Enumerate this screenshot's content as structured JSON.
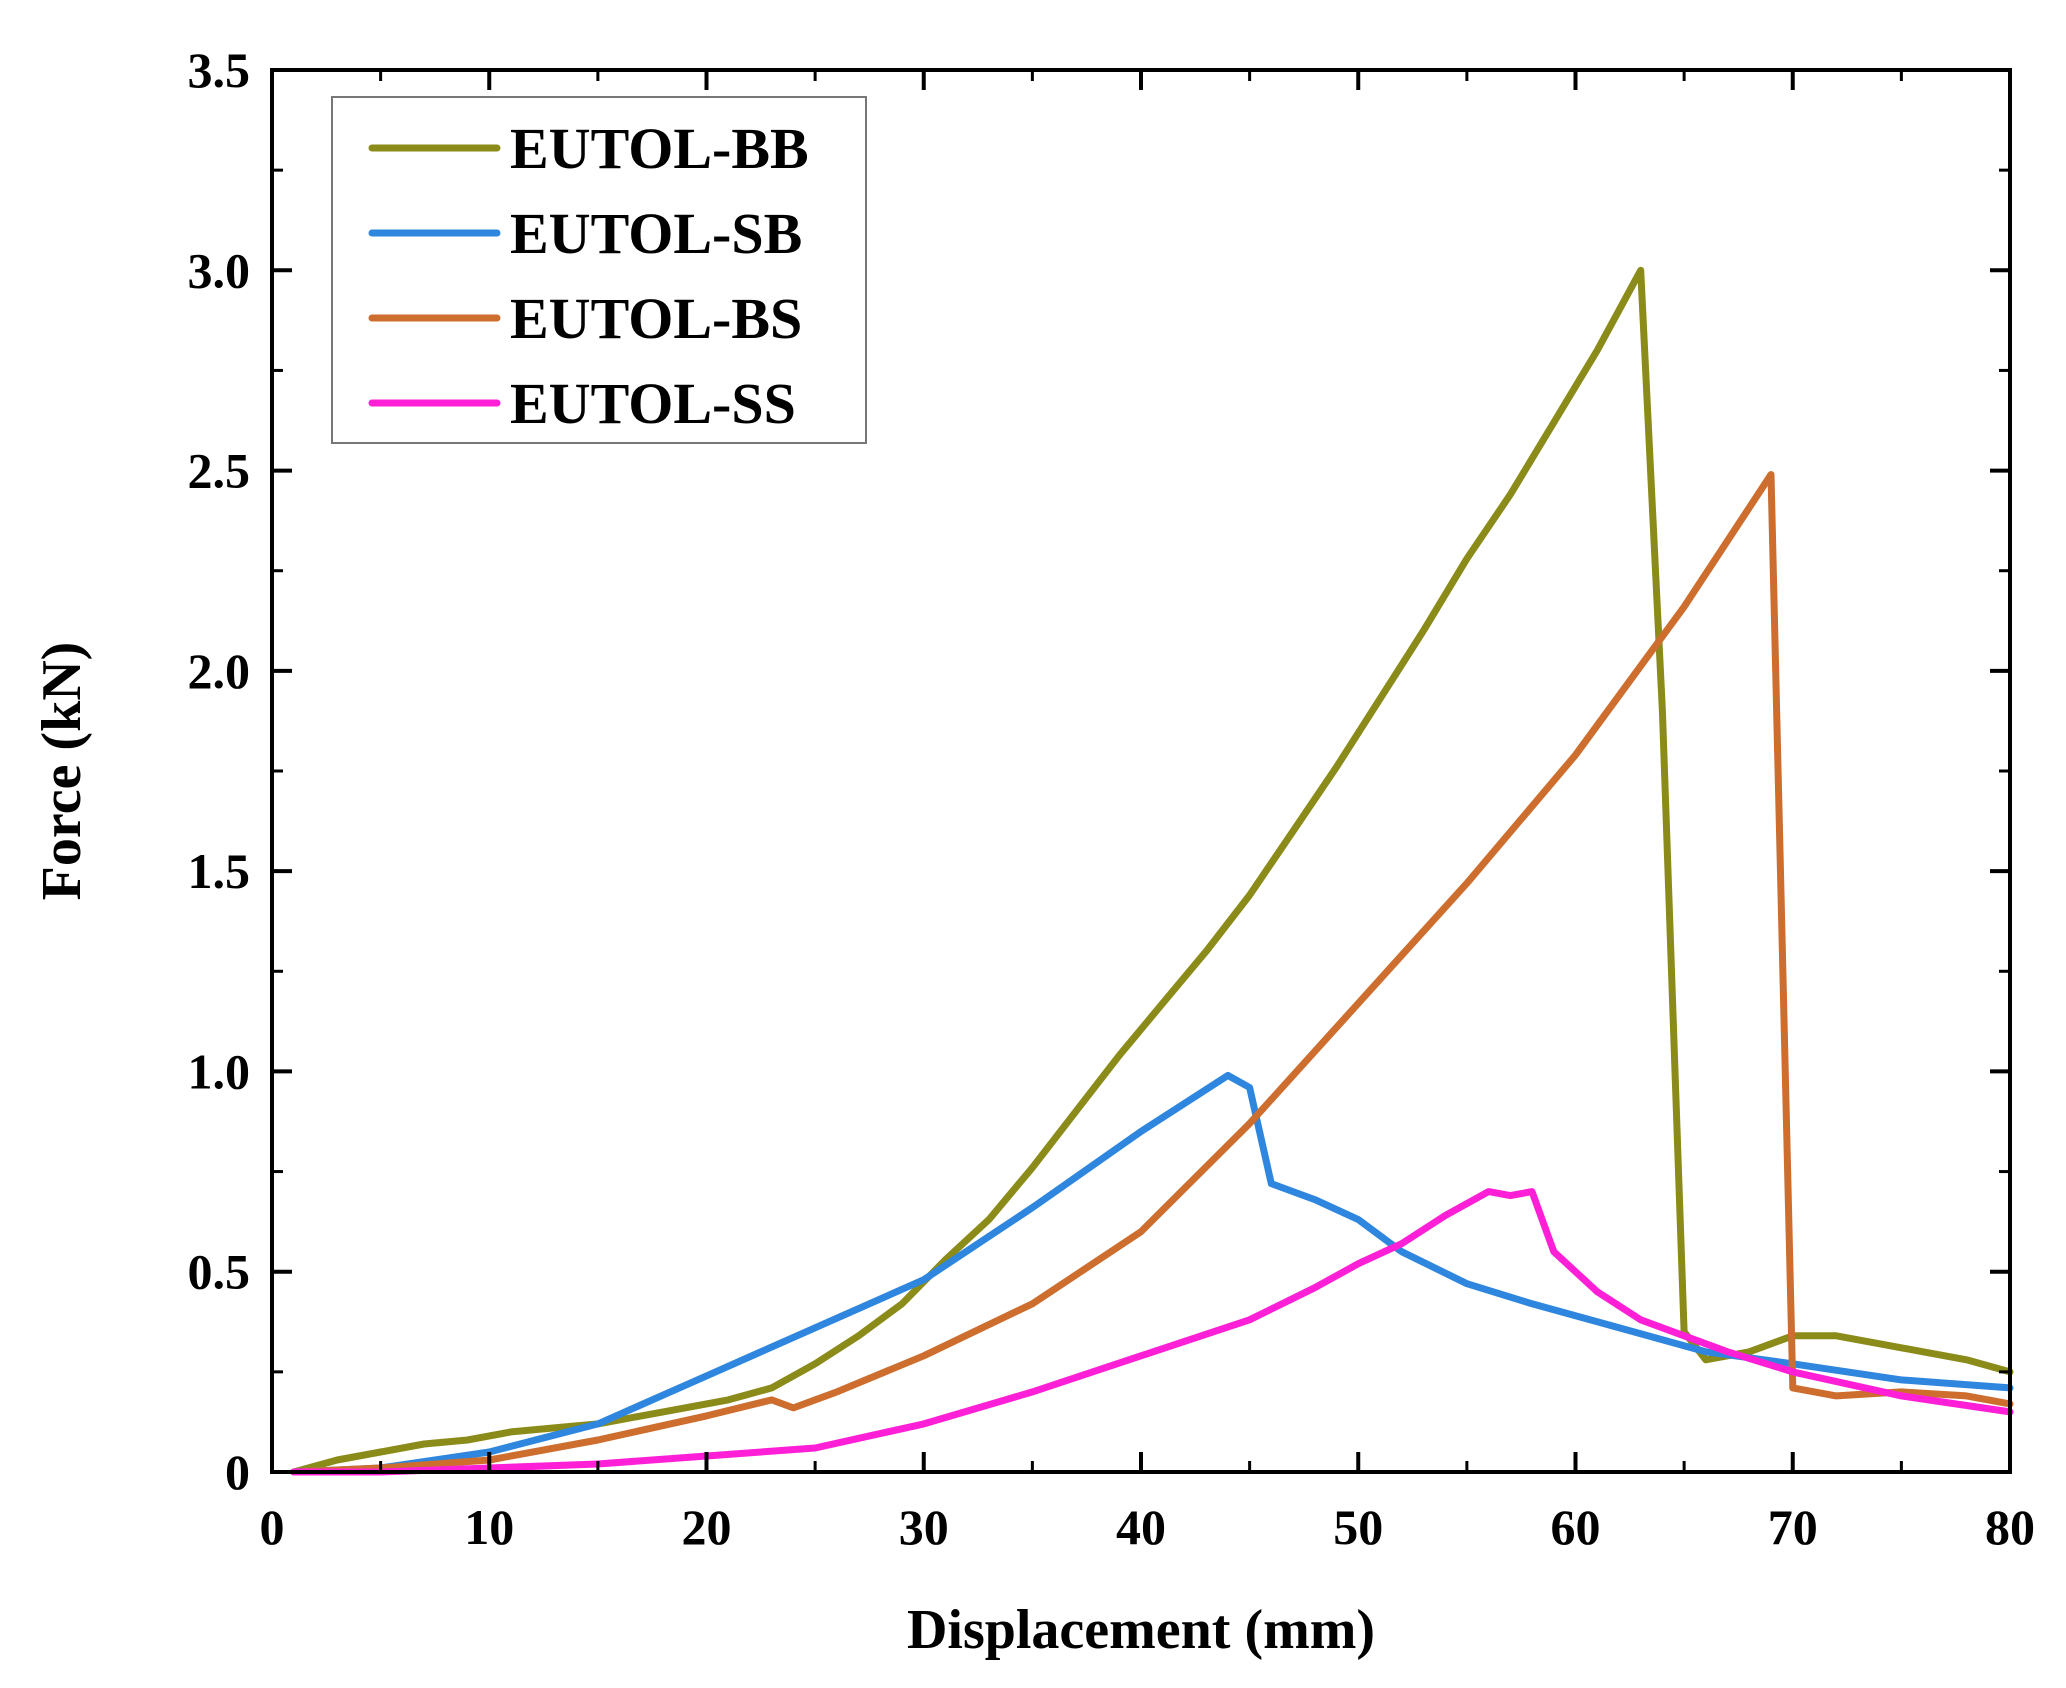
{
  "chart_data": {
    "type": "line",
    "title": "",
    "xlabel": "Displacement (mm)",
    "ylabel": "Force (kN)",
    "xlim": [
      0,
      80
    ],
    "ylim": [
      0,
      3.5
    ],
    "xticks": [
      0,
      10,
      20,
      30,
      40,
      50,
      60,
      70,
      80
    ],
    "xtick_labels": [
      "0",
      "10",
      "20",
      "30",
      "40",
      "50",
      "60",
      "70",
      "80"
    ],
    "yticks": [
      0,
      0.5,
      1.0,
      1.5,
      2.0,
      2.5,
      3.0,
      3.5
    ],
    "ytick_labels": [
      "0",
      "0.5",
      "1.0",
      "1.5",
      "2.0",
      "2.5",
      "3.0",
      "3.5"
    ],
    "grid": false,
    "legend_position": "top-left",
    "series": [
      {
        "name": "EUTOL-BB",
        "color": "#8B8B1A",
        "x": [
          1,
          3,
          5,
          7,
          9,
          11,
          13,
          15,
          17,
          19,
          21,
          23,
          25,
          27,
          29,
          31,
          33,
          35,
          37,
          39,
          41,
          43,
          45,
          47,
          49,
          51,
          53,
          55,
          57,
          59,
          61,
          62,
          63,
          64,
          65,
          66,
          68,
          70,
          72,
          74,
          76,
          78,
          80
        ],
        "y": [
          0.0,
          0.03,
          0.05,
          0.07,
          0.08,
          0.1,
          0.11,
          0.12,
          0.14,
          0.16,
          0.18,
          0.21,
          0.27,
          0.34,
          0.42,
          0.53,
          0.63,
          0.76,
          0.9,
          1.04,
          1.17,
          1.3,
          1.44,
          1.6,
          1.76,
          1.93,
          2.1,
          2.28,
          2.44,
          2.62,
          2.8,
          2.9,
          3.0,
          1.9,
          0.35,
          0.28,
          0.3,
          0.34,
          0.34,
          0.32,
          0.3,
          0.28,
          0.25
        ]
      },
      {
        "name": "EUTOL-SB",
        "color": "#2E86DE",
        "x": [
          1,
          5,
          10,
          15,
          20,
          25,
          30,
          35,
          40,
          44,
          45,
          46,
          48,
          50,
          52,
          55,
          58,
          62,
          66,
          70,
          75,
          80
        ],
        "y": [
          0.0,
          0.01,
          0.05,
          0.12,
          0.24,
          0.36,
          0.48,
          0.66,
          0.85,
          0.99,
          0.96,
          0.72,
          0.68,
          0.63,
          0.55,
          0.47,
          0.42,
          0.36,
          0.3,
          0.27,
          0.23,
          0.21
        ]
      },
      {
        "name": "EUTOL-BS",
        "color": "#CD6D2E",
        "x": [
          1,
          5,
          10,
          15,
          20,
          23,
          24,
          26,
          30,
          35,
          40,
          45,
          50,
          55,
          60,
          65,
          69,
          70,
          72,
          75,
          78,
          80
        ],
        "y": [
          0.0,
          0.01,
          0.03,
          0.08,
          0.14,
          0.18,
          0.16,
          0.2,
          0.29,
          0.42,
          0.6,
          0.87,
          1.17,
          1.47,
          1.79,
          2.16,
          2.49,
          0.21,
          0.19,
          0.2,
          0.19,
          0.17
        ]
      },
      {
        "name": "EUTOL-SS",
        "color": "#FF1FD7",
        "x": [
          1,
          5,
          10,
          15,
          20,
          25,
          30,
          35,
          40,
          45,
          48,
          50,
          52,
          54,
          56,
          57,
          58,
          59,
          61,
          63,
          65,
          67,
          70,
          75,
          80
        ],
        "y": [
          0.0,
          0.0,
          0.01,
          0.02,
          0.04,
          0.06,
          0.12,
          0.2,
          0.29,
          0.38,
          0.46,
          0.52,
          0.57,
          0.64,
          0.7,
          0.69,
          0.7,
          0.55,
          0.45,
          0.38,
          0.34,
          0.3,
          0.25,
          0.19,
          0.15
        ]
      }
    ]
  }
}
